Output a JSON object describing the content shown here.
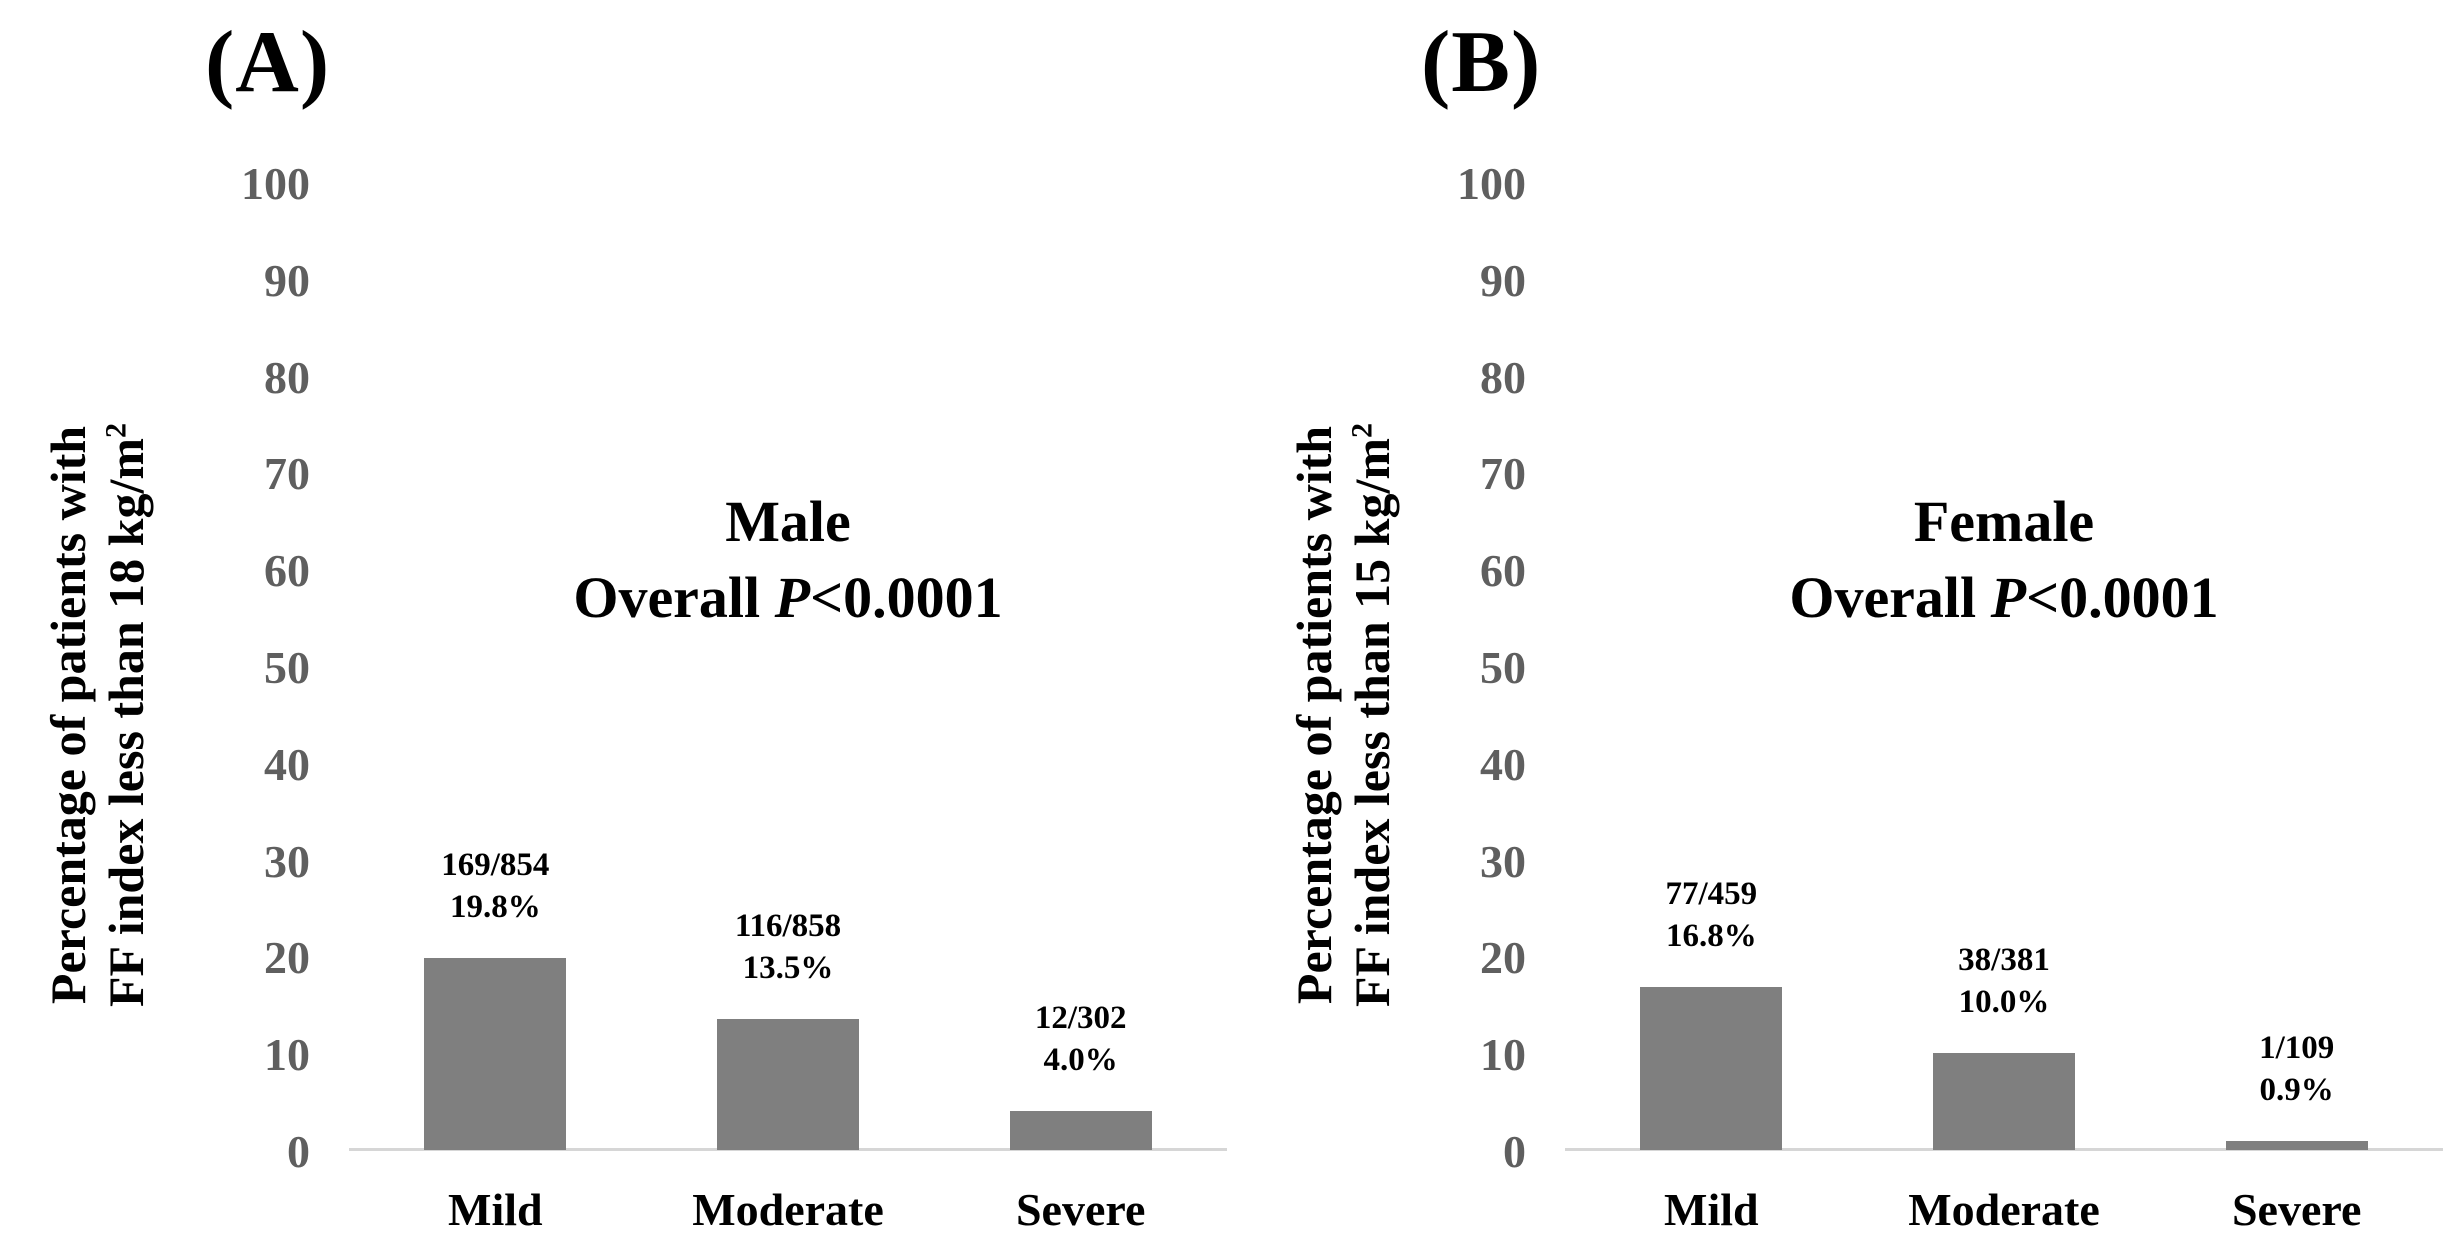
{
  "figure": {
    "background": "#ffffff"
  },
  "panels": [
    {
      "letter": "(A)",
      "title": "Male",
      "subtitle_plain": "Overall ",
      "subtitle_italic": "P",
      "subtitle_rest": "<0.0001",
      "ylabel_line1": "Percentage of patients with",
      "ylabel_line2": "FF index less than 18 kg/m",
      "ylabel_sup": "2"
    },
    {
      "letter": "(B)",
      "title": "Female",
      "subtitle_plain": "Overall ",
      "subtitle_italic": "P",
      "subtitle_rest": "<0.0001",
      "ylabel_line1": "Percentage of patients with",
      "ylabel_line2": "FF index less than 15 kg/m",
      "ylabel_sup": "2"
    }
  ],
  "chart_data": [
    {
      "type": "bar",
      "panel": "A",
      "title": "Male",
      "annotation": "Overall P<0.0001",
      "categories": [
        "Mild",
        "Moderate",
        "Severe"
      ],
      "values": [
        19.8,
        13.5,
        4.0
      ],
      "bar_labels": [
        [
          "169/854",
          "19.8%"
        ],
        [
          "116/858",
          "13.5%"
        ],
        [
          "12/302",
          "4.0%"
        ]
      ],
      "counts": [
        169,
        116,
        12
      ],
      "denominators": [
        854,
        858,
        302
      ],
      "xlabel": "",
      "ylabel": "Percentage of patients with FF index less than 18 kg/m²",
      "ylim": [
        0,
        100
      ],
      "yticks": [
        0,
        10,
        20,
        30,
        40,
        50,
        60,
        70,
        80,
        90,
        100
      ],
      "grid": false,
      "legend": null,
      "bar_color": "#7f7f7f",
      "tick_color": "#5f5f5f",
      "axis_line_color": "#d6d6d6"
    },
    {
      "type": "bar",
      "panel": "B",
      "title": "Female",
      "annotation": "Overall P<0.0001",
      "categories": [
        "Mild",
        "Moderate",
        "Severe"
      ],
      "values": [
        16.8,
        10.0,
        0.9
      ],
      "bar_labels": [
        [
          "77/459",
          "16.8%"
        ],
        [
          "38/381",
          "10.0%"
        ],
        [
          "1/109",
          "0.9%"
        ]
      ],
      "counts": [
        77,
        38,
        1
      ],
      "denominators": [
        459,
        381,
        109
      ],
      "xlabel": "",
      "ylabel": "Percentage of patients with FF index less than 15 kg/m²",
      "ylim": [
        0,
        100
      ],
      "yticks": [
        0,
        10,
        20,
        30,
        40,
        50,
        60,
        70,
        80,
        90,
        100
      ],
      "grid": false,
      "legend": null,
      "bar_color": "#7f7f7f",
      "tick_color": "#5f5f5f",
      "axis_line_color": "#d6d6d6"
    }
  ]
}
